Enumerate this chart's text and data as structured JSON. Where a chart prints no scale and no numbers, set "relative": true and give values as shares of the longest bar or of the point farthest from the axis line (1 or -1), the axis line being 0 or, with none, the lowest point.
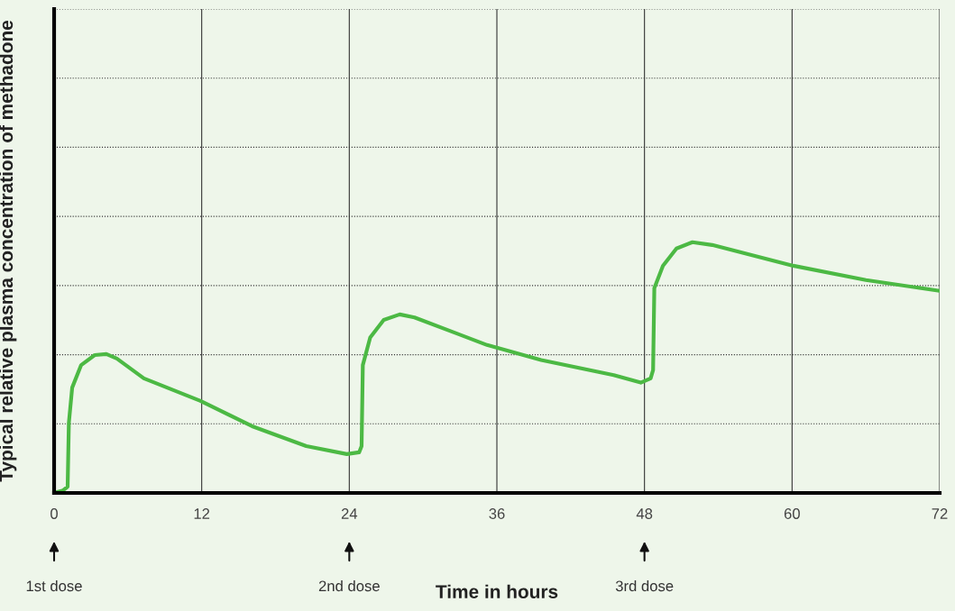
{
  "chart_data": {
    "type": "line",
    "relative": true,
    "xlabel": "Time in hours",
    "ylabel": "Typical relative plasma concentration of methadone",
    "x": [
      0,
      0.73,
      1.1,
      1.2,
      1.47,
      2.2,
      3.3,
      4.25,
      5.1,
      7.3,
      11.9,
      16.1,
      20.5,
      23.8,
      24.8,
      25.0,
      25.1,
      25.7,
      26.8,
      28.1,
      29.3,
      35.2,
      39.6,
      45.5,
      47.7,
      48.5,
      48.7,
      48.8,
      49.5,
      50.6,
      51.9,
      53.5,
      60.1,
      66.0,
      72
    ],
    "series": [
      {
        "color": "#4cb944",
        "values": [
          0,
          0.01,
          0.025,
          0.28,
          0.42,
          0.51,
          0.55,
          0.554,
          0.536,
          0.457,
          0.367,
          0.266,
          0.187,
          0.155,
          0.162,
          0.187,
          0.51,
          0.62,
          0.69,
          0.712,
          0.7,
          0.59,
          0.53,
          0.47,
          0.44,
          0.457,
          0.49,
          0.817,
          0.906,
          0.975,
          1.0,
          0.989,
          0.906,
          0.849,
          0.806
        ]
      }
    ],
    "xlim": [
      0,
      72
    ],
    "xticks": [
      0,
      12,
      24,
      36,
      48,
      60,
      72
    ],
    "grid": true,
    "tick_labels": "x",
    "line_style": "solid",
    "annotations": [
      "1st dose",
      "2nd dose",
      "3rd dose"
    ]
  }
}
